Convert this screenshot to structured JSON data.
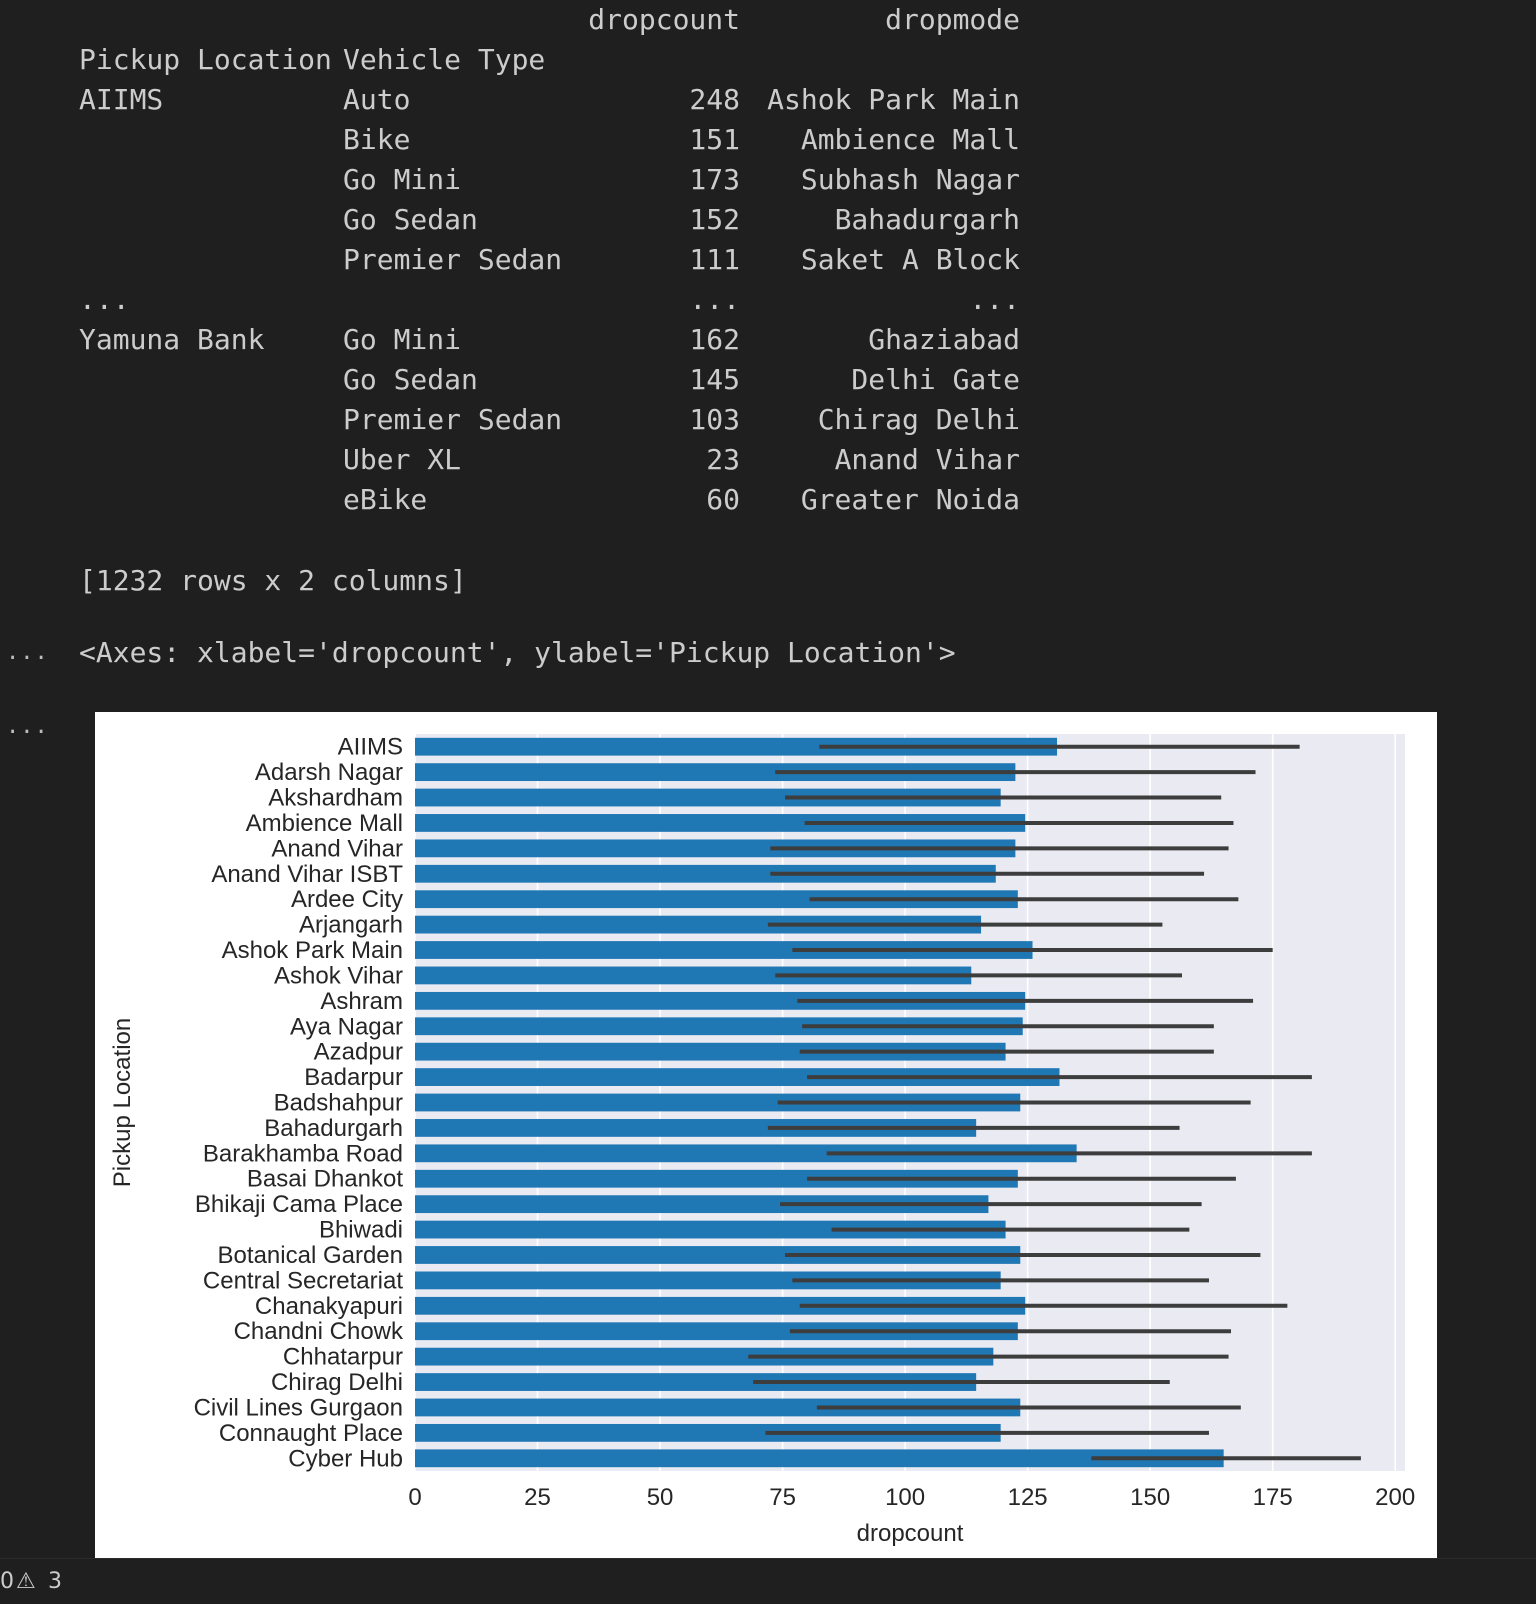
{
  "dataframe": {
    "col_headers": [
      "dropcount",
      "dropmode"
    ],
    "index_headers": [
      "Pickup Location",
      "Vehicle Type"
    ],
    "rows": [
      [
        "AIIMS",
        "Auto",
        "248",
        "Ashok Park Main"
      ],
      [
        "",
        "Bike",
        "151",
        "Ambience Mall"
      ],
      [
        "",
        "Go Mini",
        "173",
        "Subhash Nagar"
      ],
      [
        "",
        "Go Sedan",
        "152",
        "Bahadurgarh"
      ],
      [
        "",
        "Premier Sedan",
        "111",
        "Saket A Block"
      ],
      [
        "...",
        "",
        "...",
        "..."
      ],
      [
        "Yamuna Bank",
        "Go Mini",
        "162",
        "Ghaziabad"
      ],
      [
        "",
        "Go Sedan",
        "145",
        "Delhi Gate"
      ],
      [
        "",
        "Premier Sedan",
        "103",
        "Chirag Delhi"
      ],
      [
        "",
        "Uber XL",
        "23",
        "Anand Vihar"
      ],
      [
        "",
        "eBike",
        "60",
        "Greater Noida"
      ]
    ],
    "summary": "[1232 rows x 2 columns]"
  },
  "output": {
    "more_icon": "...",
    "axes_repr": "<Axes: xlabel='dropcount', ylabel='Pickup Location'>"
  },
  "chart_data": {
    "type": "bar",
    "orientation": "horizontal",
    "xlabel": "dropcount",
    "ylabel": "Pickup Location",
    "xlim": [
      0,
      202
    ],
    "xticks": [
      0,
      25,
      50,
      75,
      100,
      125,
      150,
      175,
      200
    ],
    "grid": true,
    "bar_color": "#1f77b4",
    "errbar_color": "#3d3d3d",
    "background": "#eaeaf2",
    "categories": [
      "AIIMS",
      "Adarsh Nagar",
      "Akshardham",
      "Ambience Mall",
      "Anand Vihar",
      "Anand Vihar ISBT",
      "Ardee City",
      "Arjangarh",
      "Ashok Park Main",
      "Ashok Vihar",
      "Ashram",
      "Aya Nagar",
      "Azadpur",
      "Badarpur",
      "Badshahpur",
      "Bahadurgarh",
      "Barakhamba Road",
      "Basai Dhankot",
      "Bhikaji Cama Place",
      "Bhiwadi",
      "Botanical Garden",
      "Central Secretariat",
      "Chanakyapuri",
      "Chandni Chowk",
      "Chhatarpur",
      "Chirag Delhi",
      "Civil Lines Gurgaon",
      "Connaught Place",
      "Cyber Hub"
    ],
    "values": [
      131,
      122.5,
      119.5,
      124.5,
      122.5,
      118.5,
      123,
      115.5,
      126,
      113.5,
      124.5,
      124,
      120.5,
      131.5,
      123.5,
      114.5,
      135,
      123,
      117,
      120.5,
      123.5,
      119.5,
      124.5,
      123,
      118,
      114.5,
      123.5,
      119.5,
      165
    ],
    "ci_low": [
      82.5,
      73.5,
      75.5,
      79.5,
      72.5,
      72.5,
      80.5,
      72,
      77,
      73.5,
      78,
      79,
      78.5,
      80,
      74,
      72,
      84,
      80,
      74.5,
      85,
      75.5,
      77,
      78.5,
      76.5,
      68,
      69,
      82,
      71.5,
      138
    ],
    "ci_high": [
      180.5,
      171.5,
      164.5,
      167,
      166,
      161,
      168,
      152.5,
      175,
      156.5,
      171,
      163,
      163,
      183,
      170.5,
      156,
      183,
      167.5,
      160.5,
      158,
      172.5,
      162,
      178,
      166.5,
      166,
      154,
      168.5,
      162,
      193
    ]
  }
}
